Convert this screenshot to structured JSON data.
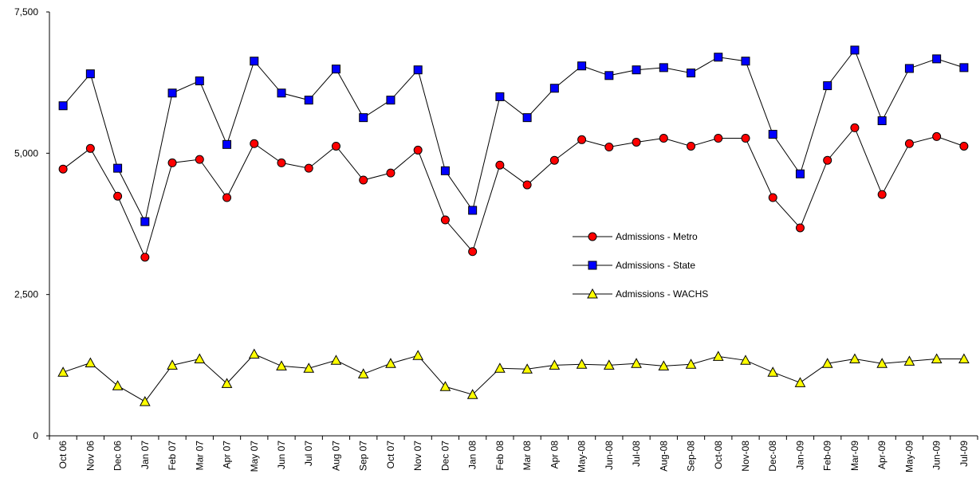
{
  "chart_data": {
    "type": "line",
    "categories": [
      "Oct 06",
      "Nov 06",
      "Dec 06",
      "Jan 07",
      "Feb 07",
      "Mar 07",
      "Apr 07",
      "May 07",
      "Jun 07",
      "Jul 07",
      "Aug 07",
      "Sep 07",
      "Oct 07",
      "Nov 07",
      "Dec 07",
      "Jan 08",
      "Feb 08",
      "Mar 08",
      "Apr 08",
      "May-08",
      "Jun-08",
      "Jul-08",
      "Aug-08",
      "Sep-08",
      "Oct-08",
      "Nov-08",
      "Dec-08",
      "Jan-09",
      "Feb-09",
      "Mar-09",
      "Apr-09",
      "May-09",
      "Jun-09",
      "Jul-09"
    ],
    "series": [
      {
        "name": "Admissions - Metro",
        "color": "#ff0000",
        "marker": "circle",
        "values": [
          4720,
          5085,
          4240,
          3160,
          4830,
          4890,
          4215,
          5170,
          4830,
          4735,
          5125,
          4525,
          4650,
          5055,
          3820,
          3260,
          4790,
          4440,
          4875,
          5240,
          5110,
          5195,
          5265,
          5125,
          5265,
          5265,
          4215,
          3680,
          4875,
          5450,
          4270,
          5170,
          5295,
          5125
        ]
      },
      {
        "name": "Admissions - State",
        "color": "#0000ff",
        "marker": "square",
        "values": [
          5840,
          6405,
          4735,
          3790,
          6065,
          6280,
          5155,
          6630,
          6065,
          5940,
          6490,
          5630,
          5940,
          6475,
          4690,
          3990,
          6000,
          5630,
          6150,
          6545,
          6375,
          6475,
          6515,
          6420,
          6700,
          6630,
          5335,
          4635,
          6195,
          6825,
          5575,
          6500,
          6670,
          6515
        ]
      },
      {
        "name": "Admissions - WACHS",
        "color": "#ffff00",
        "marker": "triangle",
        "values": [
          1125,
          1290,
          885,
          605,
          1250,
          1360,
          925,
          1445,
          1235,
          1195,
          1335,
          1095,
          1280,
          1420,
          870,
          730,
          1195,
          1180,
          1250,
          1265,
          1250,
          1280,
          1235,
          1265,
          1405,
          1335,
          1125,
          940,
          1280,
          1360,
          1280,
          1320,
          1360,
          1360
        ]
      }
    ],
    "ylim": [
      0,
      7500
    ],
    "yticks": [
      0,
      {
        "value": 2500,
        "label": "2,500"
      },
      {
        "value": 5000,
        "label": "5,000"
      },
      {
        "value": 7500,
        "label": "7,500"
      }
    ],
    "grid": false,
    "legend": "center-right",
    "line_color": "#000000"
  }
}
